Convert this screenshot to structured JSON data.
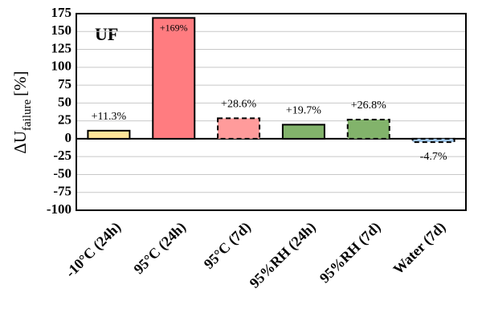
{
  "chart_data": {
    "type": "bar",
    "annotation": "UF",
    "ylabel": "ΔU",
    "ylabel_sub": "failure",
    "ylabel_unit": "[%]",
    "categories": [
      "-10°C (24h)",
      "95°C (24h)",
      "95°C (7d)",
      "95%RH (24h)",
      "95%RH (7d)",
      "Water (7d)"
    ],
    "values": [
      11.3,
      169,
      28.6,
      19.7,
      26.8,
      -4.7
    ],
    "value_labels": [
      "+11.3%",
      "+169%",
      "+28.6%",
      "+19.7%",
      "+26.8%",
      "-4.7%"
    ],
    "colors": [
      "#ffe699",
      "#ff7c80",
      "#ff9b9b",
      "#82b36b",
      "#82b36b",
      "#9dc3e6"
    ],
    "dashed": [
      false,
      false,
      true,
      false,
      true,
      true
    ],
    "ylim": [
      -100,
      175
    ],
    "yticks": [
      -100,
      -75,
      -50,
      -25,
      0,
      25,
      50,
      75,
      100,
      125,
      150,
      175
    ],
    "grid": true
  }
}
